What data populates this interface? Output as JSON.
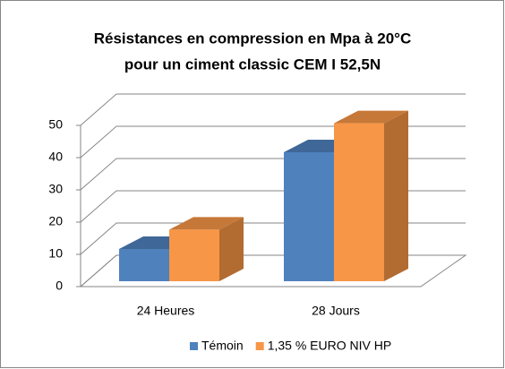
{
  "chart_data": {
    "type": "bar3d",
    "title": [
      "Résistances en compression en Mpa à 20°C",
      "pour un ciment classic CEM I 52,5N"
    ],
    "categories": [
      "24 Heures",
      "28 Jours"
    ],
    "series": [
      {
        "name": "Témoin",
        "color": "#4f81bd",
        "values": [
          10,
          40
        ]
      },
      {
        "name": "1,35 % EURO NIV HP",
        "color": "#f79646",
        "values": [
          16,
          49
        ]
      }
    ],
    "ylim": [
      0,
      50
    ],
    "yticks": [
      0,
      10,
      20,
      30,
      40,
      50
    ],
    "grid": true,
    "legend": "bottom"
  }
}
